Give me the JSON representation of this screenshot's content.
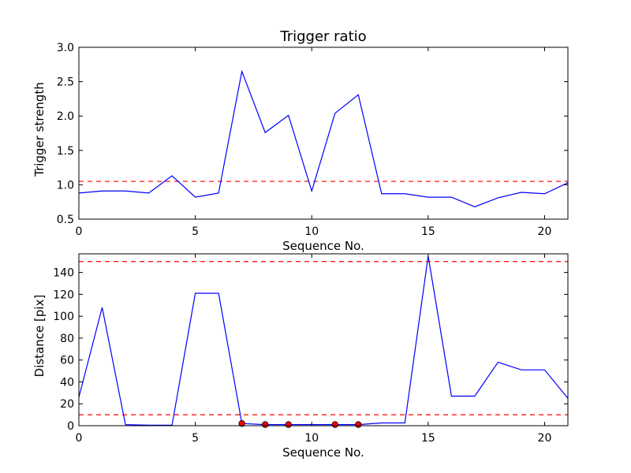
{
  "chart_data": [
    {
      "type": "line",
      "title": "Trigger ratio",
      "xlabel": "Sequence No.",
      "ylabel": "Trigger strength",
      "xlim": [
        0,
        21
      ],
      "ylim": [
        0.5,
        3.0
      ],
      "xticks": [
        "0",
        "5",
        "10",
        "15",
        "20"
      ],
      "yticks": [
        "0.5",
        "1.0",
        "1.5",
        "2.0",
        "2.5",
        "3.0"
      ],
      "x": [
        0,
        1,
        2,
        3,
        4,
        5,
        6,
        7,
        8,
        9,
        10,
        11,
        12,
        13,
        14,
        15,
        16,
        17,
        18,
        19,
        20,
        21
      ],
      "series": [
        {
          "color": "#0000ff",
          "values": [
            0.88,
            0.91,
            0.91,
            0.88,
            1.13,
            0.82,
            0.88,
            2.65,
            1.76,
            2.01,
            0.91,
            2.04,
            2.31,
            0.87,
            0.87,
            0.82,
            0.82,
            0.68,
            0.81,
            0.89,
            0.87,
            1.03
          ]
        }
      ],
      "threshold_lines": [
        {
          "y": 1.05,
          "color": "#ff0000",
          "style": "dashed"
        }
      ],
      "grid": false
    },
    {
      "type": "line",
      "title": "",
      "xlabel": "Sequence No.",
      "ylabel": "Distance [pix]",
      "xlim": [
        0,
        21
      ],
      "ylim": [
        0,
        157
      ],
      "xticks": [
        "0",
        "5",
        "10",
        "15",
        "20"
      ],
      "yticks": [
        "0",
        "20",
        "40",
        "60",
        "80",
        "100",
        "120",
        "140"
      ],
      "x": [
        0,
        1,
        2,
        3,
        4,
        5,
        6,
        7,
        8,
        9,
        10,
        11,
        12,
        13,
        14,
        15,
        16,
        17,
        18,
        19,
        20,
        21
      ],
      "series": [
        {
          "color": "#0000ff",
          "values": [
            26,
            108,
            1,
            0.5,
            0.5,
            121,
            121,
            2,
            1,
            1,
            1,
            1,
            1,
            2.5,
            2.5,
            155,
            27,
            27,
            58,
            51,
            51,
            25
          ]
        }
      ],
      "markers": {
        "color": "#ff0000",
        "x": [
          7,
          8,
          9,
          11,
          12
        ],
        "y": [
          2,
          1,
          1,
          1,
          1
        ]
      },
      "threshold_lines": [
        {
          "y": 150,
          "color": "#ff0000",
          "style": "dashed"
        },
        {
          "y": 10,
          "color": "#ff0000",
          "style": "dashed"
        }
      ],
      "grid": false
    }
  ]
}
